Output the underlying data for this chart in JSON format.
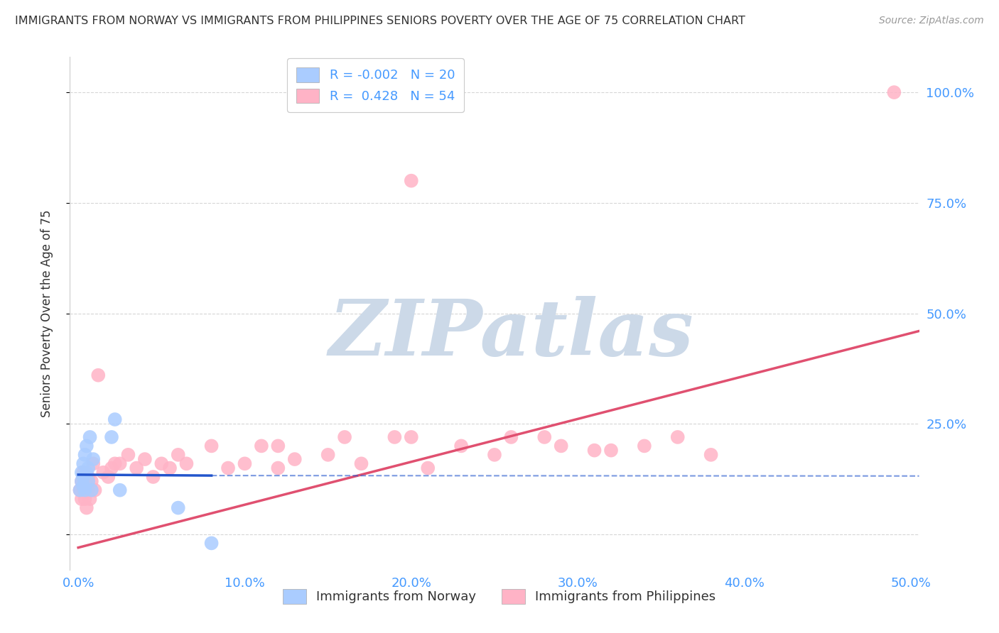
{
  "title": "IMMIGRANTS FROM NORWAY VS IMMIGRANTS FROM PHILIPPINES SENIORS POVERTY OVER THE AGE OF 75 CORRELATION CHART",
  "source": "Source: ZipAtlas.com",
  "ylabel": "Seniors Poverty Over the Age of 75",
  "xlim": [
    -0.005,
    0.505
  ],
  "ylim": [
    -0.08,
    1.08
  ],
  "xticks": [
    0.0,
    0.1,
    0.2,
    0.3,
    0.4,
    0.5
  ],
  "yticks": [
    0.0,
    0.25,
    0.5,
    0.75,
    1.0
  ],
  "xtick_labels": [
    "0.0%",
    "10.0%",
    "20.0%",
    "30.0%",
    "40.0%",
    "50.0%"
  ],
  "ytick_labels_right": [
    "100.0%",
    "75.0%",
    "50.0%",
    "25.0%",
    ""
  ],
  "ytick_positions_right": [
    1.0,
    0.75,
    0.5,
    0.25,
    0.0
  ],
  "norway_color": "#aaccff",
  "philippines_color": "#ffb3c6",
  "norway_line_color": "#2255cc",
  "philippines_line_color": "#e05070",
  "norway_R": -0.002,
  "norway_N": 20,
  "philippines_R": 0.428,
  "philippines_N": 54,
  "background_color": "#ffffff",
  "grid_color": "#cccccc",
  "watermark": "ZIPatlas",
  "watermark_color": "#ccd9e8",
  "norway_x": [
    0.001,
    0.002,
    0.002,
    0.003,
    0.003,
    0.003,
    0.004,
    0.004,
    0.005,
    0.005,
    0.006,
    0.006,
    0.007,
    0.008,
    0.009,
    0.02,
    0.022,
    0.025,
    0.06,
    0.08
  ],
  "norway_y": [
    0.1,
    0.12,
    0.14,
    0.11,
    0.13,
    0.16,
    0.1,
    0.18,
    0.14,
    0.2,
    0.12,
    0.15,
    0.22,
    0.1,
    0.17,
    0.22,
    0.26,
    0.1,
    0.06,
    -0.02
  ],
  "philippines_x": [
    0.001,
    0.002,
    0.002,
    0.003,
    0.003,
    0.004,
    0.004,
    0.005,
    0.005,
    0.006,
    0.006,
    0.007,
    0.008,
    0.009,
    0.01,
    0.012,
    0.015,
    0.018,
    0.02,
    0.022,
    0.025,
    0.03,
    0.035,
    0.04,
    0.045,
    0.05,
    0.055,
    0.06,
    0.065,
    0.08,
    0.09,
    0.1,
    0.11,
    0.12,
    0.13,
    0.15,
    0.16,
    0.17,
    0.19,
    0.2,
    0.21,
    0.23,
    0.25,
    0.26,
    0.28,
    0.31,
    0.32,
    0.34,
    0.36,
    0.38,
    0.2,
    0.29,
    0.12,
    0.49
  ],
  "philippines_y": [
    0.1,
    0.12,
    0.08,
    0.1,
    0.14,
    0.08,
    0.13,
    0.11,
    0.06,
    0.13,
    0.1,
    0.08,
    0.12,
    0.16,
    0.1,
    0.36,
    0.14,
    0.13,
    0.15,
    0.16,
    0.16,
    0.18,
    0.15,
    0.17,
    0.13,
    0.16,
    0.15,
    0.18,
    0.16,
    0.2,
    0.15,
    0.16,
    0.2,
    0.15,
    0.17,
    0.18,
    0.22,
    0.16,
    0.22,
    0.22,
    0.15,
    0.2,
    0.18,
    0.22,
    0.22,
    0.19,
    0.19,
    0.2,
    0.22,
    0.18,
    0.8,
    0.2,
    0.2,
    1.0
  ],
  "philippines_line_x0": 0.0,
  "philippines_line_y0": -0.03,
  "philippines_line_x1": 0.505,
  "philippines_line_y1": 0.46,
  "norway_line_x0": 0.0,
  "norway_line_y0": 0.135,
  "norway_line_x1": 0.505,
  "norway_line_y1": 0.132
}
